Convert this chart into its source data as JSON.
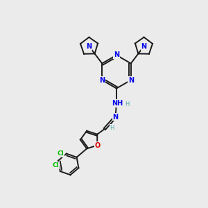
{
  "background_color": "#ebebeb",
  "bond_color": "#1a1a1a",
  "n_color": "#0000ee",
  "o_color": "#dd0000",
  "cl_color": "#00bb00",
  "h_color": "#55aaaa",
  "figsize": [
    3.0,
    3.0
  ],
  "dpi": 100,
  "xlim": [
    0,
    10
  ],
  "ylim": [
    0,
    10
  ]
}
